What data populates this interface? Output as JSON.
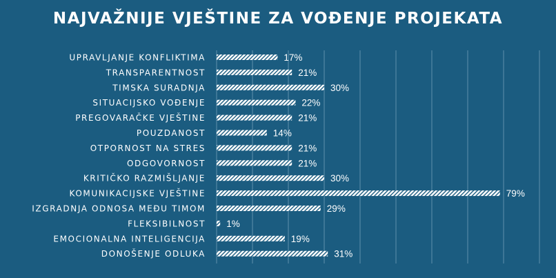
{
  "chart_data": {
    "type": "bar",
    "orientation": "horizontal",
    "title": "NAJVAŽNIJE VJEŠTINE ZA VOĐENJE PROJEKATA",
    "categories": [
      "UPRAVLJANJE KONFLIKTIMA",
      "TRANSPARENTNOST",
      "TIMSKA SURADNJA",
      "SITUACIJSKO VOĐENJE",
      "PREGOVARAČKE VJEŠTINE",
      "POUZDANOST",
      "OTPORNOST NA STRES",
      "ODGOVORNOST",
      "KRITIČKO RAZMIŠLJANJE",
      "KOMUNIKACIJSKE VJEŠTINE",
      "IZGRADNJA ODNOSA MEĐU TIMOM",
      "FLEKSIBILNOST",
      "EMOCIONALNA INTELIGENCIJA",
      "DONOŠENJE ODLUKA"
    ],
    "values": [
      17,
      21,
      30,
      22,
      21,
      14,
      21,
      21,
      30,
      79,
      29,
      1,
      19,
      31
    ],
    "value_labels": [
      "17%",
      "21%",
      "30%",
      "22%",
      "21%",
      "14%",
      "21%",
      "21%",
      "30%",
      "79%",
      "29%",
      "1%",
      "19%",
      "31%"
    ],
    "unit": "%",
    "xlim": [
      0,
      90
    ],
    "grid": true,
    "legend": "none",
    "colors": {
      "background": "#1b5c80",
      "bar": "#ffffff",
      "bar_stripe": "#1b5c80",
      "text": "#ffffff",
      "grid": "#5f8fab"
    }
  }
}
